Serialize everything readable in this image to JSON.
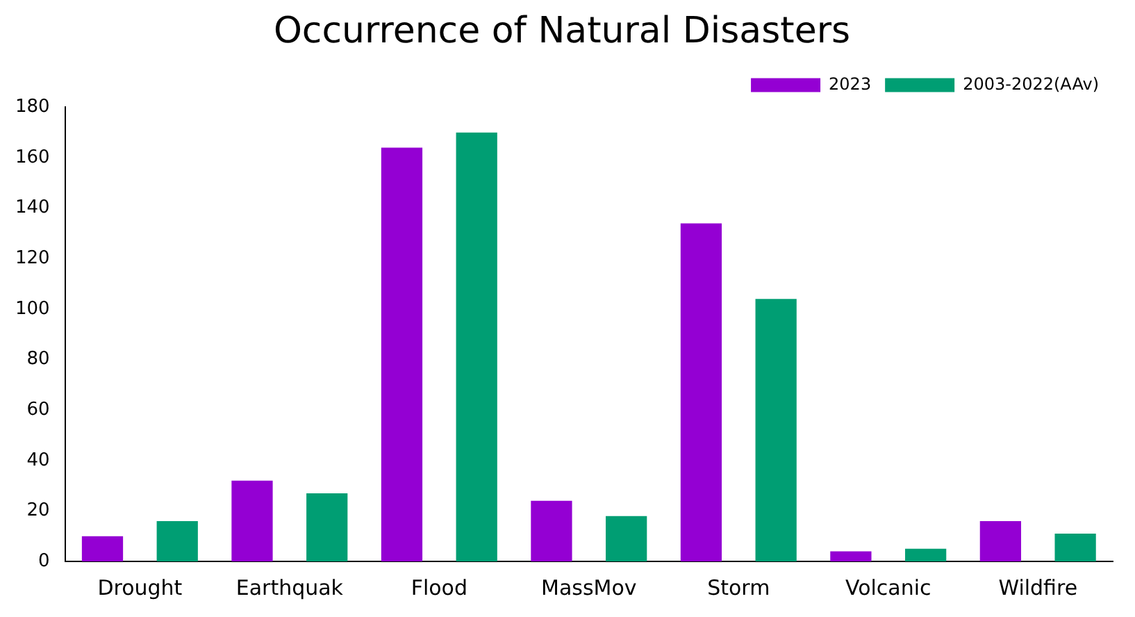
{
  "chart_data": {
    "type": "bar",
    "title": "Occurrence of Natural Disasters",
    "categories": [
      "Drought",
      "Earthquak",
      "Flood",
      "MassMov",
      "Storm",
      "Volcanic",
      "Wildfire"
    ],
    "series": [
      {
        "name": "2023",
        "color": "#9400d3",
        "values": [
          10,
          32,
          164,
          24,
          134,
          4,
          16
        ]
      },
      {
        "name": "2003-2022(AAv)",
        "color": "#009e73",
        "values": [
          16,
          27,
          170,
          18,
          104,
          5,
          11
        ]
      }
    ],
    "ylim": [
      0,
      180
    ],
    "yticks": [
      0,
      20,
      40,
      60,
      80,
      100,
      120,
      140,
      160,
      180
    ],
    "grid": false,
    "legend": "top right"
  }
}
